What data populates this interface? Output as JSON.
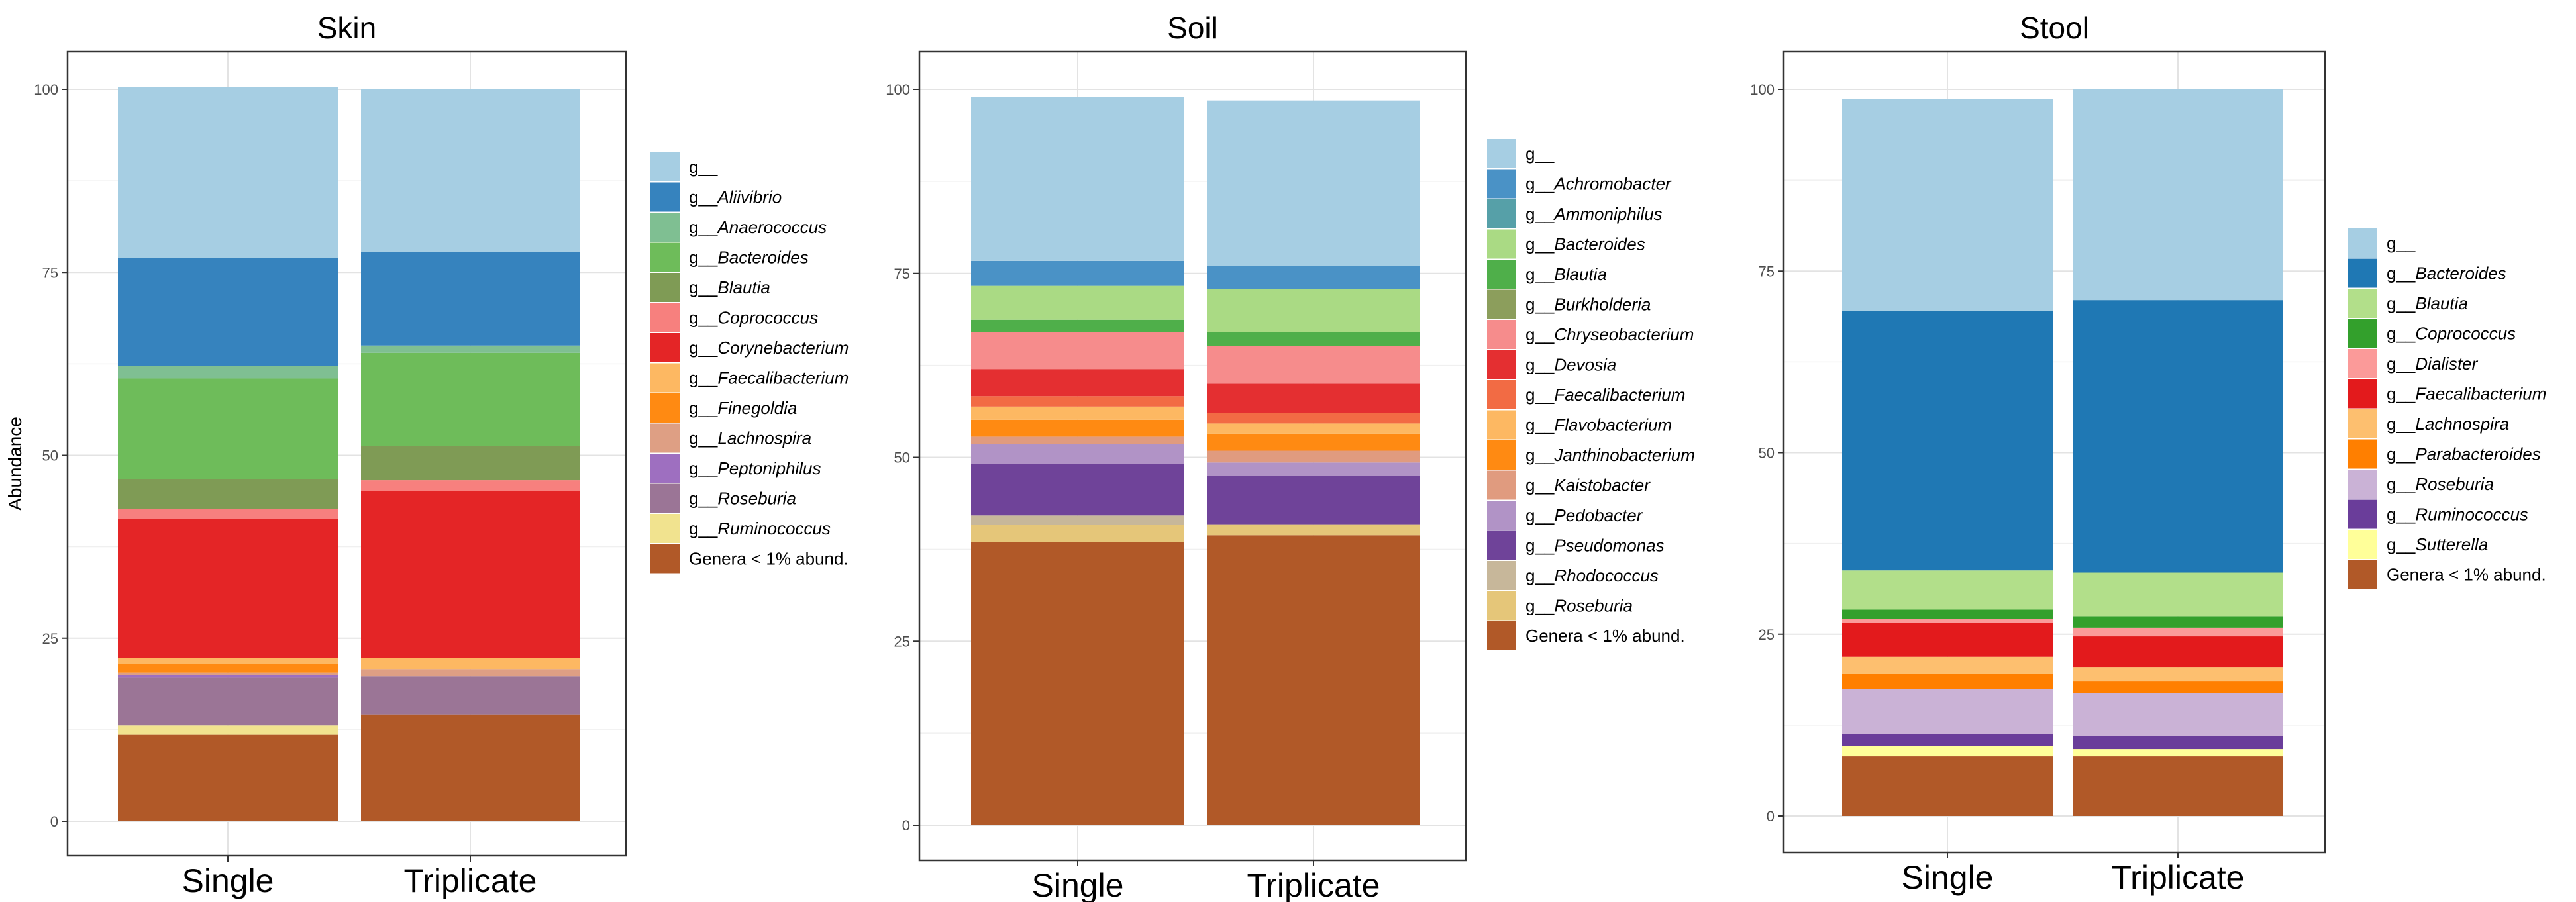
{
  "ylabel": "Abundance",
  "chart_data": [
    {
      "type": "bar",
      "stacked": true,
      "title": "Skin",
      "ylabel": "Abundance",
      "xlabel": "",
      "ylim": [
        0,
        100
      ],
      "yticks": [
        0,
        25,
        50,
        75,
        100
      ],
      "grid": true,
      "legend_position": "right",
      "categories": [
        "Single",
        "Triplicate"
      ],
      "series": [
        {
          "name": "Genera < 1% abund.",
          "prefix": "",
          "genus": "Genera < 1% abund.",
          "color": "#B15928",
          "values": [
            11.8,
            14.6
          ]
        },
        {
          "name": "g__Ruminococcus",
          "prefix": "g__",
          "genus": "Ruminococcus",
          "color": "#F1E38F",
          "values": [
            1.3,
            0
          ]
        },
        {
          "name": "g__Roseburia",
          "prefix": "g__",
          "genus": "Roseburia",
          "color": "#9B7596",
          "values": [
            6.5,
            5.2
          ]
        },
        {
          "name": "g__Peptoniphilus",
          "prefix": "g__",
          "genus": "Peptoniphilus",
          "color": "#9E6FC0",
          "values": [
            0.4,
            0
          ]
        },
        {
          "name": "g__Lachnospira",
          "prefix": "g__",
          "genus": "Lachnospira",
          "color": "#DE9F84",
          "values": [
            0.3,
            1.0
          ]
        },
        {
          "name": "g__Finegoldia",
          "prefix": "g__",
          "genus": "Finegoldia",
          "color": "#FF8A12",
          "values": [
            1.2,
            0
          ]
        },
        {
          "name": "g__Faecalibacterium",
          "prefix": "g__",
          "genus": "Faecalibacterium",
          "color": "#FDB862",
          "values": [
            0.8,
            1.5
          ]
        },
        {
          "name": "g__Corynebacterium",
          "prefix": "g__",
          "genus": "Corynebacterium",
          "color": "#E42526",
          "values": [
            19.0,
            22.8
          ]
        },
        {
          "name": "g__Coprococcus",
          "prefix": "g__",
          "genus": "Coprococcus",
          "color": "#F7807E",
          "values": [
            1.4,
            1.5
          ]
        },
        {
          "name": "g__Blautia",
          "prefix": "g__",
          "genus": "Blautia",
          "color": "#7F9B55",
          "values": [
            4.0,
            4.7
          ]
        },
        {
          "name": "g__Bacteroides",
          "prefix": "g__",
          "genus": "Bacteroides",
          "color": "#6EBC5A",
          "values": [
            13.8,
            12.7
          ]
        },
        {
          "name": "g__Anaerococcus",
          "prefix": "g__",
          "genus": "Anaerococcus",
          "color": "#7FBF92",
          "values": [
            1.7,
            1.0
          ]
        },
        {
          "name": "g__Aliivibrio",
          "prefix": "g__",
          "genus": "Aliivibrio",
          "color": "#3683BE",
          "values": [
            14.8,
            12.8
          ]
        },
        {
          "name": "g__",
          "prefix": "g__",
          "genus": "",
          "color": "#A6CEE3",
          "values": [
            23.3,
            22.2
          ]
        }
      ]
    },
    {
      "type": "bar",
      "stacked": true,
      "title": "Soil",
      "ylabel": "",
      "xlabel": "",
      "ylim": [
        0,
        100
      ],
      "yticks": [
        0,
        25,
        50,
        75,
        100
      ],
      "grid": true,
      "legend_position": "right",
      "categories": [
        "Single",
        "Triplicate"
      ],
      "series": [
        {
          "name": "Genera < 1% abund.",
          "prefix": "",
          "genus": "Genera < 1% abund.",
          "color": "#B15928",
          "values": [
            38.5,
            39.4
          ]
        },
        {
          "name": "g__Roseburia",
          "prefix": "g__",
          "genus": "Roseburia",
          "color": "#E5C679",
          "values": [
            2.3,
            1.5
          ]
        },
        {
          "name": "g__Rhodococcus",
          "prefix": "g__",
          "genus": "Rhodococcus",
          "color": "#C7B79A",
          "values": [
            1.3,
            0
          ]
        },
        {
          "name": "g__Pseudomonas",
          "prefix": "g__",
          "genus": "Pseudomonas",
          "color": "#6F4399",
          "values": [
            7.0,
            6.6
          ]
        },
        {
          "name": "g__Pedobacter",
          "prefix": "g__",
          "genus": "Pedobacter",
          "color": "#B193C6",
          "values": [
            2.7,
            1.8
          ]
        },
        {
          "name": "g__Kaistobacter",
          "prefix": "g__",
          "genus": "Kaistobacter",
          "color": "#E09B7F",
          "values": [
            1.0,
            1.6
          ]
        },
        {
          "name": "g__Janthinobacterium",
          "prefix": "g__",
          "genus": "Janthinobacterium",
          "color": "#FF8A12",
          "values": [
            2.3,
            2.3
          ]
        },
        {
          "name": "g__Flavobacterium",
          "prefix": "g__",
          "genus": "Flavobacterium",
          "color": "#FDB862",
          "values": [
            1.8,
            1.4
          ]
        },
        {
          "name": "g__Faecalibacterium",
          "prefix": "g__",
          "genus": "Faecalibacterium",
          "color": "#F26B44",
          "values": [
            1.4,
            1.4
          ]
        },
        {
          "name": "g__Devosia",
          "prefix": "g__",
          "genus": "Devosia",
          "color": "#E42F31",
          "values": [
            3.7,
            4.0
          ]
        },
        {
          "name": "g__Chryseobacterium",
          "prefix": "g__",
          "genus": "Chryseobacterium",
          "color": "#F68C8C",
          "values": [
            5.0,
            5.1
          ]
        },
        {
          "name": "g__Burkholderia",
          "prefix": "g__",
          "genus": "Burkholderia",
          "color": "#8C9E5C",
          "values": [
            0,
            0
          ]
        },
        {
          "name": "g__Blautia",
          "prefix": "g__",
          "genus": "Blautia",
          "color": "#4FAF4A",
          "values": [
            1.7,
            1.9
          ]
        },
        {
          "name": "g__Bacteroides",
          "prefix": "g__",
          "genus": "Bacteroides",
          "color": "#AADA84",
          "values": [
            4.6,
            5.9
          ]
        },
        {
          "name": "g__Ammoniphilus",
          "prefix": "g__",
          "genus": "Ammoniphilus",
          "color": "#56A0A8",
          "values": [
            0,
            0
          ]
        },
        {
          "name": "g__Achromobacter",
          "prefix": "g__",
          "genus": "Achromobacter",
          "color": "#4A92C6",
          "values": [
            3.4,
            3.1
          ]
        },
        {
          "name": "g__",
          "prefix": "g__",
          "genus": "",
          "color": "#A6CEE3",
          "values": [
            22.3,
            22.5
          ]
        }
      ]
    },
    {
      "type": "bar",
      "stacked": true,
      "title": "Stool",
      "ylabel": "",
      "xlabel": "",
      "ylim": [
        0,
        100
      ],
      "yticks": [
        0,
        25,
        50,
        75,
        100
      ],
      "grid": true,
      "legend_position": "right",
      "categories": [
        "Single",
        "Triplicate"
      ],
      "series": [
        {
          "name": "Genera < 1% abund.",
          "prefix": "",
          "genus": "Genera < 1% abund.",
          "color": "#B15928",
          "values": [
            8.2,
            8.2
          ]
        },
        {
          "name": "g__Sutterella",
          "prefix": "g__",
          "genus": "Sutterella",
          "color": "#FFFF99",
          "values": [
            1.4,
            1.0
          ]
        },
        {
          "name": "g__Ruminococcus",
          "prefix": "g__",
          "genus": "Ruminococcus",
          "color": "#6A3D9A",
          "values": [
            1.7,
            1.8
          ]
        },
        {
          "name": "g__Roseburia",
          "prefix": "g__",
          "genus": "Roseburia",
          "color": "#CAB2D6",
          "values": [
            6.2,
            5.9
          ]
        },
        {
          "name": "g__Parabacteroides",
          "prefix": "g__",
          "genus": "Parabacteroides",
          "color": "#FF7F00",
          "values": [
            2.1,
            1.6
          ]
        },
        {
          "name": "g__Lachnospira",
          "prefix": "g__",
          "genus": "Lachnospira",
          "color": "#FDBF6F",
          "values": [
            2.3,
            2.0
          ]
        },
        {
          "name": "g__Faecalibacterium",
          "prefix": "g__",
          "genus": "Faecalibacterium",
          "color": "#E31A1C",
          "values": [
            4.7,
            4.2
          ]
        },
        {
          "name": "g__Dialister",
          "prefix": "g__",
          "genus": "Dialister",
          "color": "#FB9A99",
          "values": [
            0.5,
            1.2
          ]
        },
        {
          "name": "g__Coprococcus",
          "prefix": "g__",
          "genus": "Coprococcus",
          "color": "#33A02C",
          "values": [
            1.3,
            1.6
          ]
        },
        {
          "name": "g__Blautia",
          "prefix": "g__",
          "genus": "Blautia",
          "color": "#B2DF8A",
          "values": [
            5.4,
            6.0
          ]
        },
        {
          "name": "g__Bacteroides",
          "prefix": "g__",
          "genus": "Bacteroides",
          "color": "#1F78B4",
          "values": [
            35.7,
            37.5
          ]
        },
        {
          "name": "g__",
          "prefix": "g__",
          "genus": "",
          "color": "#A6CEE3",
          "values": [
            29.2,
            29.0
          ]
        }
      ]
    }
  ]
}
